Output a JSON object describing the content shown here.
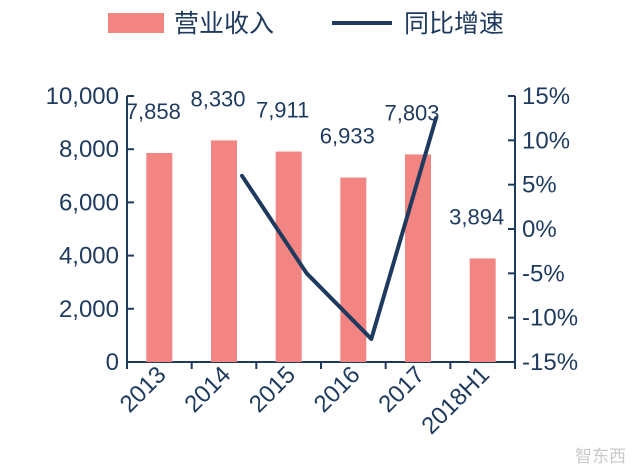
{
  "colors": {
    "bar": "#f28482",
    "line": "#1f3a5f",
    "axis": "#1f3a5f"
  },
  "legend": {
    "bar_label": "营业收入",
    "line_label": "同比增速"
  },
  "watermark": "智东西",
  "chart_data": {
    "type": "bar",
    "categories": [
      "2013",
      "2014",
      "2015",
      "2016",
      "2017",
      "2018H1"
    ],
    "series": [
      {
        "name": "营业收入",
        "type": "bar",
        "axis": "left",
        "values": [
          7858,
          8330,
          7911,
          6933,
          7803,
          3894
        ],
        "labels": [
          "7,858",
          "8,330",
          "7,911",
          "6,933",
          "7,803",
          "3,894"
        ]
      },
      {
        "name": "同比增速",
        "type": "line",
        "axis": "right",
        "values": [
          null,
          6.0,
          -5.0,
          -12.4,
          12.5,
          null
        ]
      }
    ],
    "y_left": {
      "ylim": [
        0,
        10000
      ],
      "ticks": [
        "0",
        "2,000",
        "4,000",
        "6,000",
        "8,000",
        "10,000"
      ]
    },
    "y_right": {
      "ylim": [
        -15,
        15
      ],
      "ticks": [
        "-15%",
        "-10%",
        "-5%",
        "0%",
        "5%",
        "10%",
        "15%"
      ]
    },
    "legend_position": "top"
  }
}
